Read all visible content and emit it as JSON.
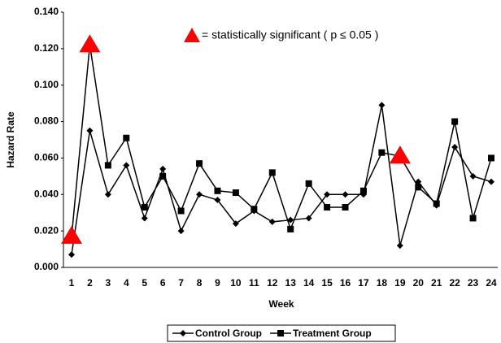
{
  "chart_data": {
    "type": "line",
    "y_label": "Hazard Rate",
    "x_label": "Week",
    "annotation": "= statistically significant ( p ≤ 0.05 )",
    "categories": [
      "1",
      "2",
      "3",
      "4",
      "5",
      "6",
      "7",
      "8",
      "9",
      "10",
      "11",
      "12",
      "13",
      "14",
      "15",
      "16",
      "17",
      "18",
      "19",
      "20",
      "21",
      "22",
      "23",
      "24"
    ],
    "series": [
      {
        "name": "Control Group",
        "color": "#000000",
        "marker": "diamond",
        "values": [
          0.007,
          0.075,
          0.04,
          0.056,
          0.027,
          0.054,
          0.02,
          0.04,
          0.037,
          0.024,
          0.031,
          0.025,
          0.026,
          0.027,
          0.04,
          0.04,
          0.04,
          0.089,
          0.012,
          0.047,
          0.034,
          0.066,
          0.05,
          0.047
        ]
      },
      {
        "name": "Treatment Group",
        "color": "#000000",
        "marker": "square",
        "values": [
          0.017,
          0.122,
          0.056,
          0.071,
          0.033,
          0.05,
          0.031,
          0.057,
          0.042,
          0.041,
          0.032,
          0.052,
          0.021,
          0.046,
          0.033,
          0.033,
          0.042,
          0.063,
          0.061,
          0.044,
          0.035,
          0.08,
          0.027,
          0.06
        ]
      }
    ],
    "significant_color": "#ff0000",
    "significant_categories": [
      "1",
      "2",
      "19"
    ],
    "ylim": [
      0,
      0.14
    ],
    "yticks": [
      {
        "value": 0,
        "label": "0.000"
      },
      {
        "value": 0.02,
        "label": "0.020"
      },
      {
        "value": 0.04,
        "label": "0.040"
      },
      {
        "value": 0.06,
        "label": "0.060"
      },
      {
        "value": 0.08,
        "label": "0.080"
      },
      {
        "value": 0.1,
        "label": "0.100"
      },
      {
        "value": 0.12,
        "label": "0.120"
      },
      {
        "value": 0.14,
        "label": "0.140"
      }
    ]
  }
}
